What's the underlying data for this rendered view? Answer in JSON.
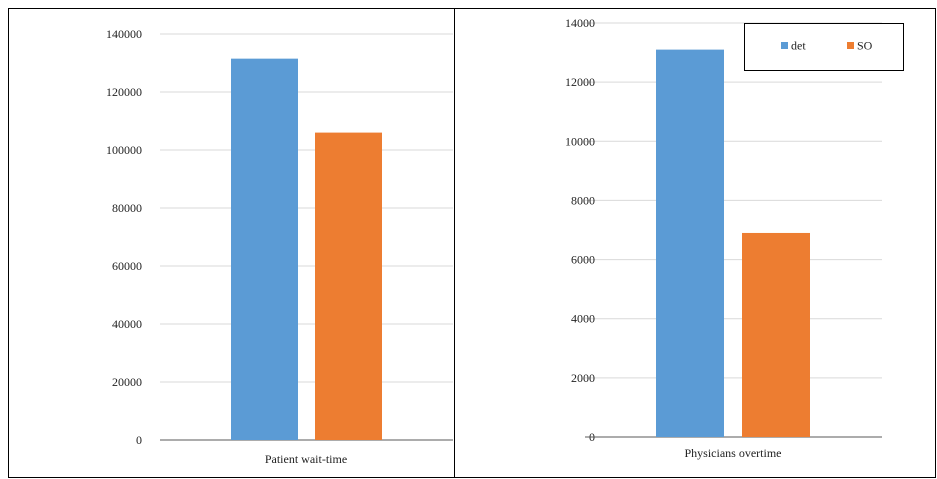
{
  "colors": {
    "det": "#5b9bd5",
    "so": "#ed7d31",
    "grid": "#d9d9d9",
    "axis": "#595959",
    "border": "#000000"
  },
  "chart_data": [
    {
      "type": "bar",
      "categories": [
        "Patient wait-time"
      ],
      "series": [
        {
          "name": "det",
          "values": [
            131500
          ]
        },
        {
          "name": "SO",
          "values": [
            106000
          ]
        }
      ],
      "xlabel": "",
      "ylabel": "",
      "ylim": [
        0,
        140000
      ],
      "yticks": [
        "0",
        "20000",
        "40000",
        "60000",
        "80000",
        "100000",
        "120000",
        "140000"
      ],
      "grid": true,
      "legend": "none"
    },
    {
      "type": "bar",
      "categories": [
        "Physicians overtime"
      ],
      "series": [
        {
          "name": "det",
          "values": [
            13100
          ]
        },
        {
          "name": "SO",
          "values": [
            6900
          ]
        }
      ],
      "xlabel": "",
      "ylabel": "",
      "ylim": [
        0,
        14000
      ],
      "yticks": [
        "0",
        "2000",
        "4000",
        "6000",
        "8000",
        "10000",
        "12000",
        "14000"
      ],
      "grid": true,
      "legend": "top-right"
    }
  ]
}
